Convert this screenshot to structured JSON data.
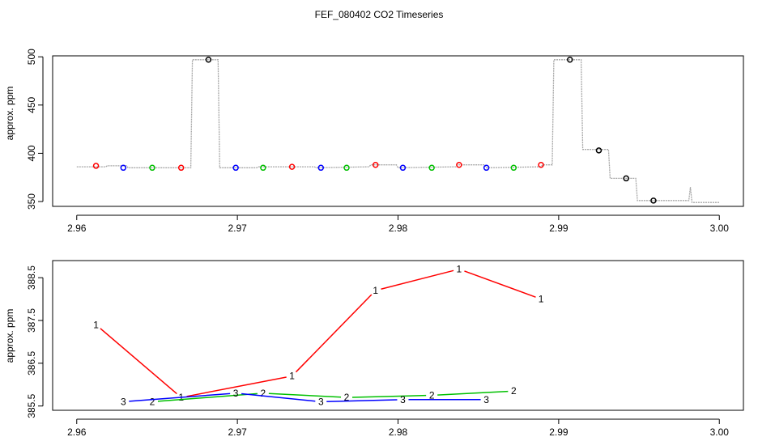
{
  "figure": {
    "title": "FEF_080402  CO2 Timeseries"
  },
  "colors": {
    "trace": "#a6a6a6",
    "series_1": "#ff0000",
    "series_2": "#00c000",
    "series_3": "#0000ff",
    "black": "#000000"
  },
  "chart_data": [
    {
      "type": "line",
      "title": "",
      "xlabel": "",
      "ylabel": "approx. ppm",
      "xlim": [
        2.9585,
        3.0015
      ],
      "ylim": [
        345,
        501
      ],
      "x_ticks": [
        2.96,
        2.97,
        2.98,
        2.99,
        3.0
      ],
      "x_tick_labels": [
        "2.96",
        "2.97",
        "2.98",
        "2.99",
        "3.00"
      ],
      "y_ticks": [
        350,
        400,
        450,
        500
      ],
      "y_tick_labels": [
        "350",
        "400",
        "450",
        "500"
      ],
      "grid": false,
      "trace": {
        "name": "",
        "x": [
          2.96,
          2.9618,
          2.9619,
          2.9631,
          2.9632,
          2.9666,
          2.9667,
          2.9671,
          2.9672,
          2.9688,
          2.9689,
          2.9699,
          2.97,
          2.9712,
          2.9713,
          2.9734,
          2.9735,
          2.9748,
          2.9749,
          2.9782,
          2.9783,
          2.9799,
          2.98,
          2.9836,
          2.9837,
          2.9854,
          2.9855,
          2.9889,
          2.989,
          2.9896,
          2.9897,
          2.9914,
          2.9915,
          2.9931,
          2.9932,
          2.9948,
          2.9949,
          2.9981,
          2.9982,
          2.9983,
          3.0
        ],
        "y": [
          386,
          386,
          387,
          387,
          385,
          385,
          385,
          385,
          497,
          497,
          385,
          385,
          385,
          385,
          386,
          386,
          386,
          386,
          385,
          386,
          388,
          388,
          385,
          386,
          388,
          388,
          385,
          386,
          388,
          388,
          497,
          497,
          404,
          404,
          374,
          374,
          351,
          351,
          365,
          349,
          349
        ]
      },
      "markers": [
        {
          "x": 2.9612,
          "y": 387,
          "color": "#ff0000"
        },
        {
          "x": 2.9629,
          "y": 385,
          "color": "#0000ff"
        },
        {
          "x": 2.9647,
          "y": 385,
          "color": "#00c000"
        },
        {
          "x": 2.9665,
          "y": 385,
          "color": "#ff0000"
        },
        {
          "x": 2.9682,
          "y": 497,
          "color": "#000000"
        },
        {
          "x": 2.9699,
          "y": 385,
          "color": "#0000ff"
        },
        {
          "x": 2.9716,
          "y": 385,
          "color": "#00c000"
        },
        {
          "x": 2.9734,
          "y": 386,
          "color": "#ff0000"
        },
        {
          "x": 2.9752,
          "y": 385,
          "color": "#0000ff"
        },
        {
          "x": 2.9768,
          "y": 385,
          "color": "#00c000"
        },
        {
          "x": 2.9786,
          "y": 388,
          "color": "#ff0000"
        },
        {
          "x": 2.9803,
          "y": 385,
          "color": "#0000ff"
        },
        {
          "x": 2.9821,
          "y": 385,
          "color": "#00c000"
        },
        {
          "x": 2.9838,
          "y": 388,
          "color": "#ff0000"
        },
        {
          "x": 2.9855,
          "y": 385,
          "color": "#0000ff"
        },
        {
          "x": 2.9872,
          "y": 385,
          "color": "#00c000"
        },
        {
          "x": 2.9889,
          "y": 388,
          "color": "#ff0000"
        },
        {
          "x": 2.9907,
          "y": 497,
          "color": "#000000"
        },
        {
          "x": 2.9925,
          "y": 403,
          "color": "#000000"
        },
        {
          "x": 2.9942,
          "y": 374,
          "color": "#000000"
        },
        {
          "x": 2.9959,
          "y": 351,
          "color": "#000000"
        }
      ]
    },
    {
      "type": "line",
      "title": "",
      "xlabel": "",
      "ylabel": "approx. ppm",
      "xlim": [
        2.9585,
        3.0015
      ],
      "ylim": [
        385.4,
        388.9
      ],
      "x_ticks": [
        2.96,
        2.97,
        2.98,
        2.99,
        3.0
      ],
      "x_tick_labels": [
        "2.96",
        "2.97",
        "2.98",
        "2.99",
        "3.00"
      ],
      "y_ticks": [
        385.5,
        386.5,
        387.5,
        388.5
      ],
      "y_tick_labels": [
        "385.5",
        "386.5",
        "387.5",
        "388.5"
      ],
      "grid": false,
      "series": [
        {
          "name": "1",
          "label": "1",
          "color": "#ff0000",
          "x": [
            2.9612,
            2.9665,
            2.9734,
            2.9786,
            2.9838,
            2.9889
          ],
          "y": [
            387.4,
            385.7,
            386.2,
            388.2,
            388.7,
            388.0
          ]
        },
        {
          "name": "2",
          "label": "2",
          "color": "#00c000",
          "x": [
            2.9647,
            2.9716,
            2.9768,
            2.9821,
            2.9872
          ],
          "y": [
            385.6,
            385.8,
            385.7,
            385.75,
            385.85
          ]
        },
        {
          "name": "3",
          "label": "3",
          "color": "#0000ff",
          "x": [
            2.9629,
            2.9699,
            2.9752,
            2.9803,
            2.9855
          ],
          "y": [
            385.6,
            385.8,
            385.6,
            385.65,
            385.65
          ]
        }
      ]
    }
  ]
}
